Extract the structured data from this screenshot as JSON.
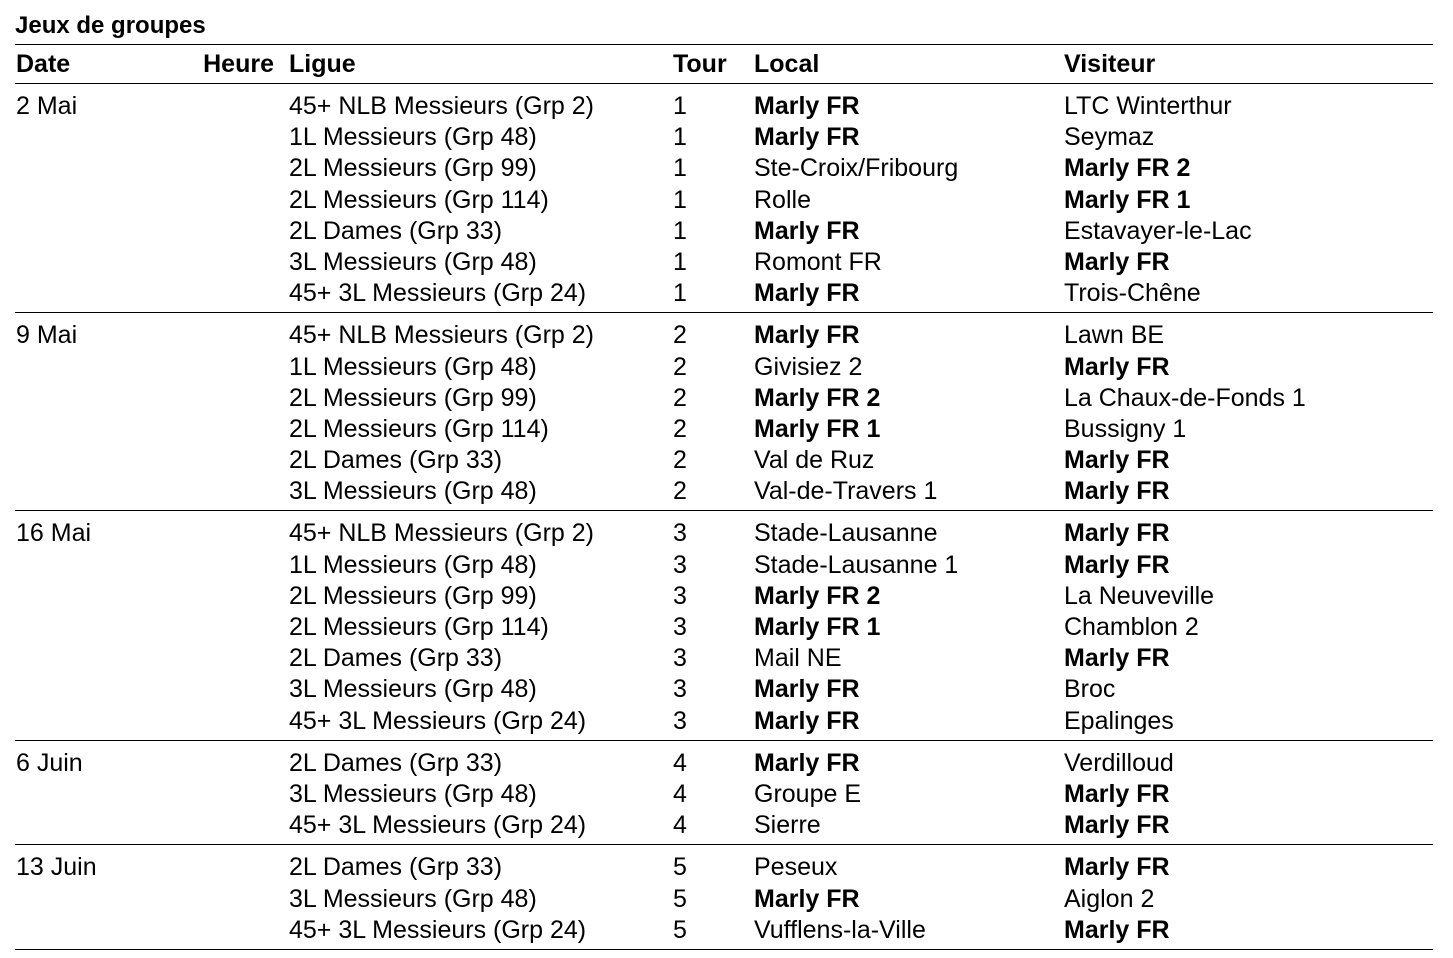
{
  "title": "Jeux de groupes",
  "headers": {
    "date": "Date",
    "heure": "Heure",
    "ligue": "Ligue",
    "tour": "Tour",
    "local": "Local",
    "visiteur": "Visiteur"
  },
  "groups": [
    {
      "date": "2 Mai",
      "matches": [
        {
          "ligue": "45+ NLB Messieurs (Grp 2)",
          "tour": "1",
          "local": "Marly FR",
          "visiteur": "LTC Winterthur",
          "bold": "local"
        },
        {
          "ligue": "1L Messieurs (Grp 48)",
          "tour": "1",
          "local": "Marly FR",
          "visiteur": "Seymaz",
          "bold": "local"
        },
        {
          "ligue": "2L Messieurs (Grp 99)",
          "tour": "1",
          "local": "Ste-Croix/Fribourg",
          "visiteur": "Marly FR 2",
          "bold": "visiteur"
        },
        {
          "ligue": "2L Messieurs (Grp 114)",
          "tour": "1",
          "local": "Rolle",
          "visiteur": "Marly FR 1",
          "bold": "visiteur"
        },
        {
          "ligue": "2L Dames (Grp 33)",
          "tour": "1",
          "local": "Marly FR",
          "visiteur": "Estavayer-le-Lac",
          "bold": "local"
        },
        {
          "ligue": "3L Messieurs (Grp 48)",
          "tour": "1",
          "local": "Romont FR",
          "visiteur": "Marly FR",
          "bold": "visiteur"
        },
        {
          "ligue": "45+ 3L Messieurs (Grp 24)",
          "tour": "1",
          "local": "Marly FR",
          "visiteur": "Trois-Chêne",
          "bold": "local"
        }
      ]
    },
    {
      "date": "9 Mai",
      "matches": [
        {
          "ligue": "45+ NLB Messieurs (Grp 2)",
          "tour": "2",
          "local": "Marly FR",
          "visiteur": "Lawn BE",
          "bold": "local"
        },
        {
          "ligue": "1L Messieurs (Grp 48)",
          "tour": "2",
          "local": "Givisiez 2",
          "visiteur": "Marly FR",
          "bold": "visiteur"
        },
        {
          "ligue": "2L Messieurs (Grp 99)",
          "tour": "2",
          "local": "Marly FR 2",
          "visiteur": "La Chaux-de-Fonds 1",
          "bold": "local"
        },
        {
          "ligue": "2L Messieurs (Grp 114)",
          "tour": "2",
          "local": "Marly FR 1",
          "visiteur": "Bussigny 1",
          "bold": "local"
        },
        {
          "ligue": "2L Dames (Grp 33)",
          "tour": "2",
          "local": "Val de Ruz",
          "visiteur": "Marly FR",
          "bold": "visiteur"
        },
        {
          "ligue": "3L Messieurs (Grp 48)",
          "tour": "2",
          "local": "Val-de-Travers 1",
          "visiteur": "Marly FR",
          "bold": "visiteur"
        }
      ]
    },
    {
      "date": "16 Mai",
      "matches": [
        {
          "ligue": "45+ NLB Messieurs (Grp 2)",
          "tour": "3",
          "local": "Stade-Lausanne",
          "visiteur": "Marly FR",
          "bold": "visiteur"
        },
        {
          "ligue": "1L Messieurs (Grp 48)",
          "tour": "3",
          "local": "Stade-Lausanne 1",
          "visiteur": "Marly FR",
          "bold": "visiteur"
        },
        {
          "ligue": "2L Messieurs (Grp 99)",
          "tour": "3",
          "local": "Marly FR 2",
          "visiteur": "La Neuveville",
          "bold": "local"
        },
        {
          "ligue": "2L Messieurs (Grp 114)",
          "tour": "3",
          "local": "Marly FR 1",
          "visiteur": "Chamblon 2",
          "bold": "local"
        },
        {
          "ligue": "2L Dames (Grp 33)",
          "tour": "3",
          "local": "Mail NE",
          "visiteur": "Marly FR",
          "bold": "visiteur"
        },
        {
          "ligue": "3L Messieurs (Grp 48)",
          "tour": "3",
          "local": "Marly FR",
          "visiteur": "Broc",
          "bold": "local"
        },
        {
          "ligue": "45+ 3L Messieurs (Grp 24)",
          "tour": "3",
          "local": "Marly FR",
          "visiteur": "Epalinges",
          "bold": "local"
        }
      ]
    },
    {
      "date": "6 Juin",
      "matches": [
        {
          "ligue": "2L Dames (Grp 33)",
          "tour": "4",
          "local": "Marly FR",
          "visiteur": "Verdilloud",
          "bold": "local"
        },
        {
          "ligue": "3L Messieurs (Grp 48)",
          "tour": "4",
          "local": "Groupe E",
          "visiteur": "Marly FR",
          "bold": "visiteur"
        },
        {
          "ligue": "45+ 3L Messieurs (Grp 24)",
          "tour": "4",
          "local": "Sierre",
          "visiteur": "Marly FR",
          "bold": "visiteur"
        }
      ]
    },
    {
      "date": "13 Juin",
      "matches": [
        {
          "ligue": "2L Dames (Grp 33)",
          "tour": "5",
          "local": "Peseux",
          "visiteur": "Marly FR",
          "bold": "visiteur"
        },
        {
          "ligue": "3L Messieurs (Grp 48)",
          "tour": "5",
          "local": "Marly FR",
          "visiteur": "Aiglon 2",
          "bold": "local"
        },
        {
          "ligue": "45+ 3L Messieurs (Grp 24)",
          "tour": "5",
          "local": "Vufflens-la-Ville",
          "visiteur": "Marly FR",
          "bold": "visiteur"
        }
      ]
    }
  ]
}
